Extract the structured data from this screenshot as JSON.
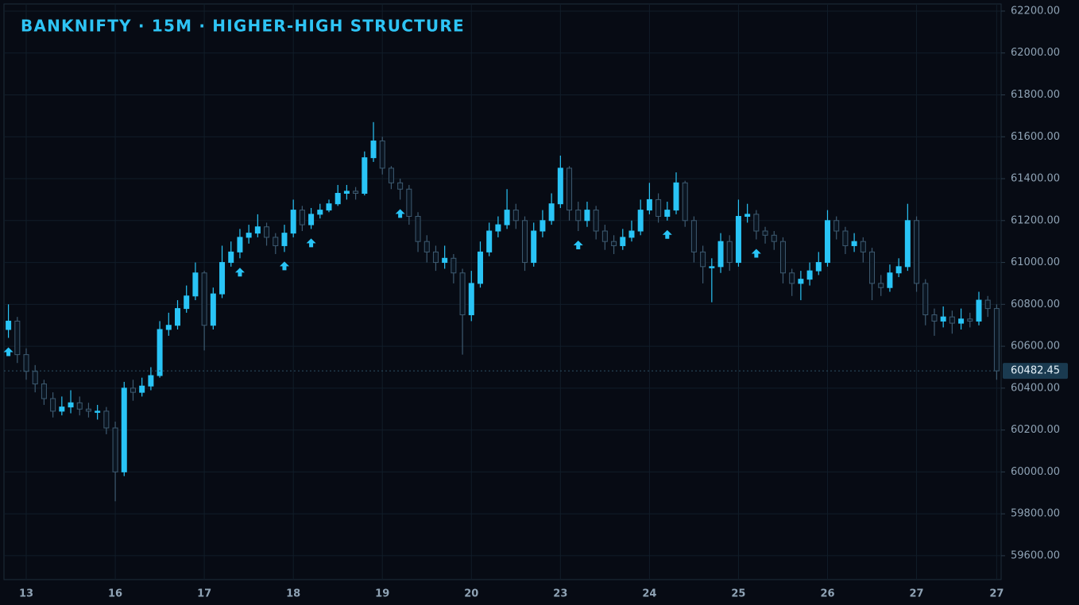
{
  "chart_data": {
    "type": "candlestick",
    "title": "BANKNIFTY · 15M · HIGHER-HIGH STRUCTURE",
    "up_color": "#29c4f6",
    "down_color": "#3d5a70",
    "grid": true,
    "xlim": [
      -0.5,
      111.5
    ],
    "xticks": [
      {
        "value": 2,
        "label": "13"
      },
      {
        "value": 12,
        "label": "16"
      },
      {
        "value": 22,
        "label": "17"
      },
      {
        "value": 32,
        "label": "18"
      },
      {
        "value": 42,
        "label": "19"
      },
      {
        "value": 52,
        "label": "20"
      },
      {
        "value": 62,
        "label": "23"
      },
      {
        "value": 72,
        "label": "24"
      },
      {
        "value": 82,
        "label": "25"
      },
      {
        "value": 92,
        "label": "26"
      },
      {
        "value": 102,
        "label": "27"
      },
      {
        "value": 111,
        "label": "27"
      }
    ],
    "ylim": [
      59486,
      62234
    ],
    "yticks": [
      {
        "value": 59600,
        "label": "59600.00"
      },
      {
        "value": 59800,
        "label": "59800.00"
      },
      {
        "value": 60000,
        "label": "60000.00"
      },
      {
        "value": 60200,
        "label": "60200.00"
      },
      {
        "value": 60400,
        "label": "60400.00"
      },
      {
        "value": 60600,
        "label": "60600.00"
      },
      {
        "value": 60800,
        "label": "60800.00"
      },
      {
        "value": 61000,
        "label": "61000.00"
      },
      {
        "value": 61200,
        "label": "61200.00"
      },
      {
        "value": 61400,
        "label": "61400.00"
      },
      {
        "value": 61600,
        "label": "61600.00"
      },
      {
        "value": 61800,
        "label": "61800.00"
      },
      {
        "value": 62000,
        "label": "62000.00"
      },
      {
        "value": 62200,
        "label": "62200.00"
      }
    ],
    "last_price": 60482.45,
    "hh_markers": [
      0,
      26,
      31,
      34,
      44,
      64,
      74,
      84
    ],
    "open": [
      60680,
      60720,
      60560,
      60480,
      60420,
      60350,
      60290,
      60310,
      60330,
      60300,
      60290,
      60290,
      60210,
      60000,
      60400,
      60380,
      60410,
      60460,
      60680,
      60700,
      60780,
      60840,
      60950,
      60700,
      60850,
      61000,
      61050,
      61120,
      61140,
      61170,
      61120,
      61080,
      61140,
      61250,
      61180,
      61230,
      61250,
      61280,
      61330,
      61340,
      61330,
      61500,
      61580,
      61450,
      61380,
      61350,
      61220,
      61100,
      61050,
      61000,
      61020,
      60950,
      60750,
      60900,
      61050,
      61150,
      61180,
      61250,
      61200,
      61000,
      61150,
      61200,
      61280,
      61450,
      61250,
      61200,
      61250,
      61150,
      61100,
      61080,
      61120,
      61150,
      61250,
      61300,
      61220,
      61250,
      61380,
      61200,
      61050,
      60980,
      60980,
      61100,
      61000,
      61220,
      61230,
      61150,
      61130,
      61100,
      60950,
      60900,
      60920,
      60960,
      61000,
      61200,
      61150,
      61080,
      61100,
      61050,
      60900,
      60880,
      60950,
      60980,
      61200,
      60900,
      60750,
      60720,
      60740,
      60710,
      60730,
      60720,
      60820,
      60780
    ],
    "high": [
      60800,
      60740,
      60590,
      60510,
      60440,
      60380,
      60360,
      60390,
      60360,
      60330,
      60320,
      60310,
      60240,
      60430,
      60440,
      60450,
      60500,
      60720,
      60760,
      60820,
      60890,
      61000,
      60960,
      60880,
      61080,
      61100,
      61160,
      61180,
      61230,
      61190,
      61140,
      61180,
      61300,
      61270,
      61260,
      61280,
      61300,
      61370,
      61370,
      61360,
      61530,
      61670,
      61600,
      61460,
      61400,
      61370,
      61240,
      61130,
      61080,
      61080,
      61040,
      60970,
      60960,
      61100,
      61190,
      61220,
      61350,
      61280,
      61220,
      61190,
      61250,
      61330,
      61510,
      61460,
      61290,
      61290,
      61270,
      61180,
      61130,
      61160,
      61200,
      61300,
      61380,
      61330,
      61290,
      61430,
      61390,
      61220,
      61080,
      61020,
      61140,
      61130,
      61300,
      61280,
      61250,
      61170,
      61150,
      61120,
      60970,
      60960,
      61000,
      61050,
      61250,
      61220,
      61170,
      61140,
      61120,
      61070,
      60940,
      60990,
      61020,
      61280,
      61220,
      60920,
      60780,
      60790,
      60770,
      60780,
      60760,
      60860,
      60840,
      60800
    ],
    "low": [
      60640,
      60520,
      60440,
      60380,
      60320,
      60260,
      60270,
      60280,
      60270,
      60260,
      60250,
      60180,
      59860,
      59980,
      60340,
      60360,
      60390,
      60450,
      60650,
      60680,
      60760,
      60820,
      60580,
      60680,
      60830,
      60980,
      61020,
      61090,
      61120,
      61080,
      61040,
      61050,
      61120,
      61150,
      61160,
      61210,
      61240,
      61270,
      61300,
      61300,
      61320,
      61480,
      61420,
      61350,
      61300,
      61180,
      61050,
      61000,
      60960,
      60970,
      60900,
      60560,
      60720,
      60880,
      61030,
      61120,
      61160,
      61160,
      60960,
      60980,
      61120,
      61180,
      61260,
      61200,
      61150,
      61170,
      61110,
      61060,
      61040,
      61060,
      61100,
      61130,
      61230,
      61190,
      61200,
      61230,
      61170,
      61000,
      60900,
      60810,
      60950,
      60960,
      60980,
      61190,
      61110,
      61090,
      61060,
      60900,
      60840,
      60820,
      60890,
      60940,
      60980,
      61110,
      61040,
      61050,
      61000,
      60820,
      60840,
      60860,
      60930,
      60960,
      60860,
      60700,
      60650,
      60690,
      60660,
      60680,
      60690,
      60700,
      60740,
      60440
    ],
    "close": [
      60720,
      60560,
      60480,
      60420,
      60350,
      60290,
      60310,
      60330,
      60300,
      60290,
      60290,
      60210,
      60000,
      60400,
      60380,
      60410,
      60460,
      60680,
      60700,
      60780,
      60840,
      60950,
      60700,
      60850,
      61000,
      61050,
      61120,
      61140,
      61170,
      61120,
      61080,
      61140,
      61250,
      61180,
      61230,
      61250,
      61280,
      61330,
      61340,
      61330,
      61500,
      61580,
      61450,
      61380,
      61350,
      61220,
      61100,
      61050,
      61000,
      61020,
      60950,
      60750,
      60900,
      61050,
      61150,
      61180,
      61250,
      61200,
      61000,
      61150,
      61200,
      61280,
      61450,
      61250,
      61200,
      61250,
      61150,
      61100,
      61080,
      61120,
      61150,
      61250,
      61300,
      61220,
      61250,
      61380,
      61200,
      61050,
      60980,
      60980,
      61100,
      61000,
      61220,
      61230,
      61150,
      61130,
      61100,
      60950,
      60900,
      60920,
      60960,
      61000,
      61200,
      61150,
      61080,
      61100,
      61050,
      60900,
      60880,
      60950,
      60980,
      61200,
      60900,
      60750,
      60720,
      60740,
      60710,
      60730,
      60720,
      60820,
      60780,
      60482.45
    ]
  }
}
